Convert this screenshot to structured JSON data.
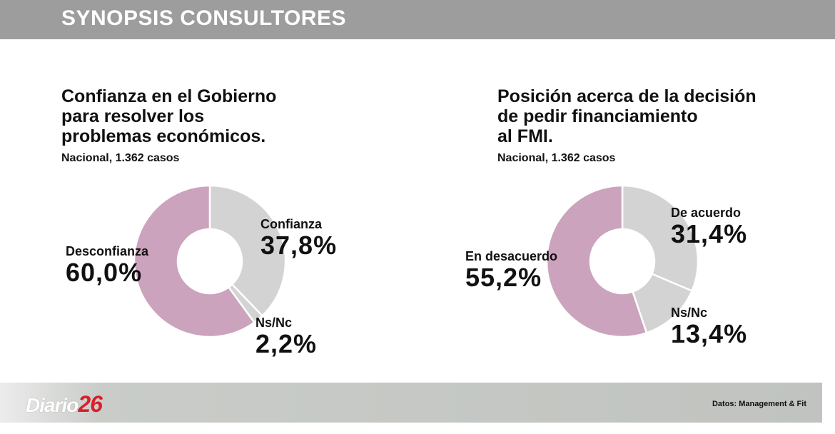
{
  "header": {
    "title": "SYNOPSIS CONSULTORES"
  },
  "charts": [
    {
      "title_lines": [
        "Confianza en el Gobierno",
        "para resolver los",
        "problemas económicos."
      ],
      "subtitle": "Nacional, 1.362 casos",
      "slices": [
        {
          "label": "Confianza",
          "value_text": "37,8%"
        },
        {
          "label": "Ns/Nc",
          "value_text": "2,2%"
        },
        {
          "label": "Desconfianza",
          "value_text": "60,0%"
        }
      ]
    },
    {
      "title_lines": [
        "Posición acerca de la decisión",
        "de pedir financiamiento",
        "al FMI."
      ],
      "subtitle": "Nacional, 1.362 casos",
      "slices": [
        {
          "label": "De acuerdo",
          "value_text": "31,4%"
        },
        {
          "label": "Ns/Nc",
          "value_text": "13,4%"
        },
        {
          "label": "En desacuerdo",
          "value_text": "55,2%"
        }
      ]
    }
  ],
  "chart_data": [
    {
      "type": "pie",
      "title": "Confianza en el Gobierno para resolver los problemas económicos.",
      "subtitle": "Nacional, 1.362 casos",
      "categories": [
        "Confianza",
        "Ns/Nc",
        "Desconfianza"
      ],
      "values": [
        37.8,
        2.2,
        60.0
      ],
      "colors": [
        "#d3d3d3",
        "#d3d3d3",
        "#cba3bc"
      ],
      "donut": true
    },
    {
      "type": "pie",
      "title": "Posición acerca de la decisión de pedir financiamiento al FMI.",
      "subtitle": "Nacional, 1.362 casos",
      "categories": [
        "De acuerdo",
        "Ns/Nc",
        "En desacuerdo"
      ],
      "values": [
        31.4,
        13.4,
        55.2
      ],
      "colors": [
        "#d3d3d3",
        "#d3d3d3",
        "#cba3bc"
      ],
      "donut": true
    }
  ],
  "footer": {
    "logo_part1": "Diario",
    "logo_part2": "26",
    "source": "Datos: Management & Fit"
  }
}
